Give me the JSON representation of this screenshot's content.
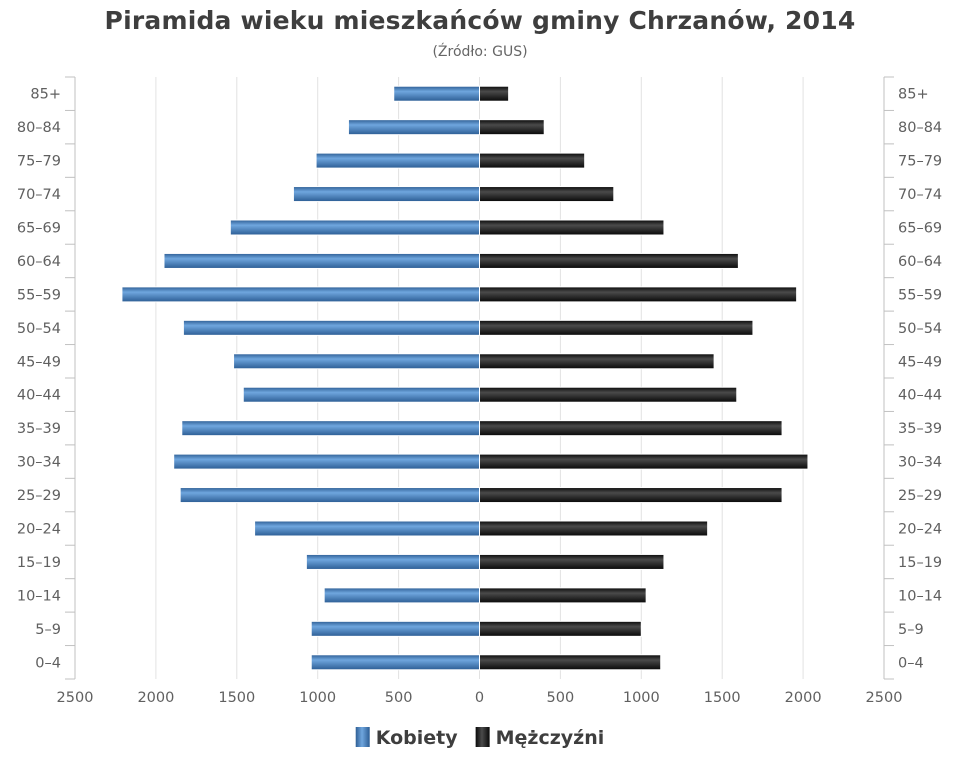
{
  "chart_data": {
    "type": "bar",
    "orientation": "horizontal-pyramid",
    "title": "Piramida wieku mieszkańców gminy Chrzanów, 2014",
    "subtitle": "(Źródło: GUS)",
    "categories": [
      "85+",
      "80–84",
      "75–79",
      "70–74",
      "65–69",
      "60–64",
      "55–59",
      "50–54",
      "45–49",
      "40–44",
      "35–39",
      "30–34",
      "25–29",
      "20–24",
      "15–19",
      "10–14",
      "5–9",
      "0–4"
    ],
    "x_ticks": [
      "2500",
      "2000",
      "1500",
      "1000",
      "500",
      "0",
      "500",
      "1000",
      "1500",
      "2000",
      "2500"
    ],
    "xlim": [
      -2500,
      2500
    ],
    "grid": true,
    "legend_position": "bottom-center",
    "series": [
      {
        "name": "Kobiety",
        "color": "#3f7fc1",
        "side": "left",
        "values": [
          530,
          810,
          1010,
          1150,
          1540,
          1950,
          2210,
          1830,
          1520,
          1460,
          1840,
          1890,
          1850,
          1390,
          1070,
          960,
          1040,
          1040
        ]
      },
      {
        "name": "Mężczyźni",
        "color": "#1c1c1c",
        "side": "right",
        "values": [
          180,
          400,
          650,
          830,
          1140,
          1600,
          1960,
          1690,
          1450,
          1590,
          1870,
          2030,
          1870,
          1410,
          1140,
          1030,
          1000,
          1120
        ]
      }
    ]
  }
}
